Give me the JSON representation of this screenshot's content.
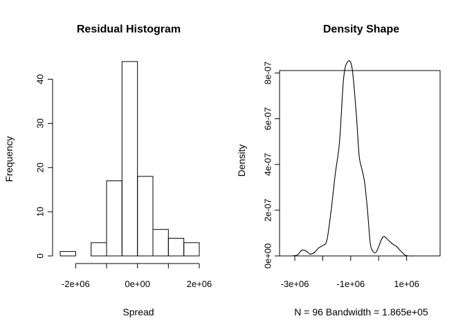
{
  "chart_data": [
    {
      "type": "bar",
      "title": "Residual Histogram",
      "xlabel": "Spread",
      "ylabel": "Frequency",
      "bins": [
        {
          "from": -2500000,
          "to": -2000000,
          "count": 1
        },
        {
          "from": -2000000,
          "to": -1500000,
          "count": 0
        },
        {
          "from": -1500000,
          "to": -1000000,
          "count": 3
        },
        {
          "from": -1000000,
          "to": -500000,
          "count": 17
        },
        {
          "from": -500000,
          "to": 0,
          "count": 44
        },
        {
          "from": 0,
          "to": 500000,
          "count": 18
        },
        {
          "from": 500000,
          "to": 1000000,
          "count": 6
        },
        {
          "from": 1000000,
          "to": 1500000,
          "count": 4
        },
        {
          "from": 1500000,
          "to": 2000000,
          "count": 3
        }
      ],
      "xlim": [
        -2500000,
        2000000
      ],
      "ylim": [
        0,
        44
      ],
      "xticks": [
        -2000000,
        0,
        2000000
      ],
      "xtick_labels": [
        "-2e+06",
        "0e+00",
        "2e+06"
      ],
      "yticks": [
        0,
        10,
        20,
        30,
        40
      ],
      "ytick_labels": [
        "0",
        "10",
        "20",
        "30",
        "40"
      ],
      "grid": false
    },
    {
      "type": "line",
      "title": "Density Shape",
      "xlabel": "N = 96   Bandwidth = 1.865e+05",
      "ylabel": "Density",
      "series": [
        {
          "x": [
            -3100000,
            -2900000,
            -2750000,
            -2600000,
            -2450000,
            -2300000,
            -2150000,
            -2000000,
            -1850000,
            -1700000,
            -1550000,
            -1400000,
            -1250000,
            -1100000,
            -950000,
            -800000,
            -700000,
            -600000,
            -500000,
            -400000,
            -300000,
            -200000,
            -100000,
            0,
            100000,
            200000,
            350000,
            500000,
            650000,
            800000,
            950000,
            1100000,
            1250000,
            1400000,
            1550000,
            1700000,
            1850000,
            1950000
          ],
          "y": [
            0,
            5e-09,
            2.5e-08,
            2.2e-08,
            8e-09,
            1.5e-08,
            3.5e-08,
            4.5e-08,
            7e-08,
            2e-07,
            3.6e-07,
            5e-07,
            7.8e-07,
            8.5e-07,
            8.2e-07,
            6.2e-07,
            4.4e-07,
            3.8e-07,
            3.2e-07,
            2e-07,
            5.5e-08,
            2e-08,
            1.5e-08,
            4e-08,
            7.2e-08,
            8.5e-08,
            6.8e-08,
            5.2e-08,
            4e-08,
            2e-08,
            3e-09,
            0,
            0,
            0,
            0,
            0,
            0,
            0
          ]
        }
      ],
      "xlim": [
        -3100000,
        1950000
      ],
      "ylim": [
        0,
        8.5e-07
      ],
      "xticks": [
        -3000000,
        -2000000,
        -1000000,
        0,
        1000000
      ],
      "xtick_labels": [
        "-3e+06",
        "",
        "-1e+06",
        "",
        "1e+06"
      ],
      "yticks": [
        0,
        2e-07,
        4e-07,
        6e-07,
        8e-07
      ],
      "ytick_labels": [
        "0e+00",
        "2e-07",
        "4e-07",
        "6e-07",
        "8e-07"
      ],
      "grid": false
    }
  ]
}
